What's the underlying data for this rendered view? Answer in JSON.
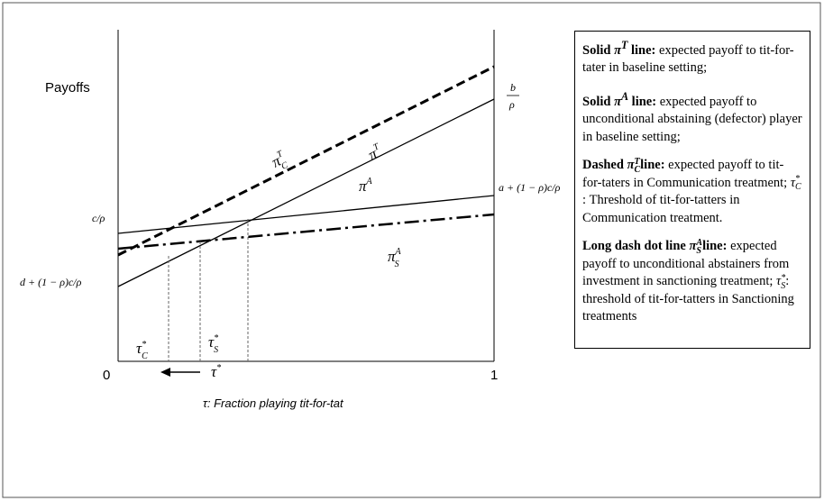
{
  "axis": {
    "y_label": "Payoffs",
    "origin": "0",
    "end": "1",
    "x_label": "τ: Fraction playing tit-for-tat"
  },
  "left_labels": {
    "c_rho": "c/ρ",
    "d_expr": "d + (1 − ρ)c/ρ"
  },
  "right_labels": {
    "b": "b",
    "rho": "ρ",
    "a_expr": "a + (1 − ρ)c/ρ"
  },
  "curves": {
    "pi_c_t": {
      "base": "π",
      "sup": "T",
      "sub": "C"
    },
    "pi_t": {
      "base": "π",
      "sup": "T"
    },
    "pi_a": {
      "base": "π",
      "sup": "A"
    },
    "pi_s_a": {
      "base": "π",
      "sup": "A",
      "sub": "S"
    }
  },
  "thresholds": {
    "tau_c": {
      "base": "τ",
      "sup": "*",
      "sub": "C"
    },
    "tau_s": {
      "base": "τ",
      "sup": "*",
      "sub": "S"
    },
    "tau_star": {
      "base": "τ",
      "sup": "*"
    }
  },
  "notes": [
    {
      "bold1": "Solid ",
      "sym": "π",
      "sup": "T",
      "bold2": " line:",
      "text": " expected payoff to tit-for-tater in baseline setting;"
    },
    {
      "bold1": "Solid ",
      "sym": "π",
      "sup": "A",
      "bold2": " line:",
      "text": " expected payoff to unconditional abstaining (defector) player in baseline setting;"
    },
    {
      "bold1": "Dashed ",
      "sym": "π",
      "sup": "T",
      "sub": "C",
      "bold2": "line:",
      "text": " expected payoff to tit-for-taters in Communication treatment; ",
      "sym2": "τ",
      "sup2": "*",
      "sub2": "C",
      "text2": ": Threshold of tit-for-tatters in Communication treatment."
    },
    {
      "bold1": "Long dash dot line ",
      "sym": "π",
      "sup": "A",
      "sub": "S",
      "bold2": "line:",
      "text": " expected payoff to unconditional abstainers from investment in sanctioning treatment; ",
      "sym2": "τ",
      "sup2": "*",
      "sub2": "S",
      "text2": ": threshold of tit-for-tatters in Sanctioning treatments"
    }
  ]
}
